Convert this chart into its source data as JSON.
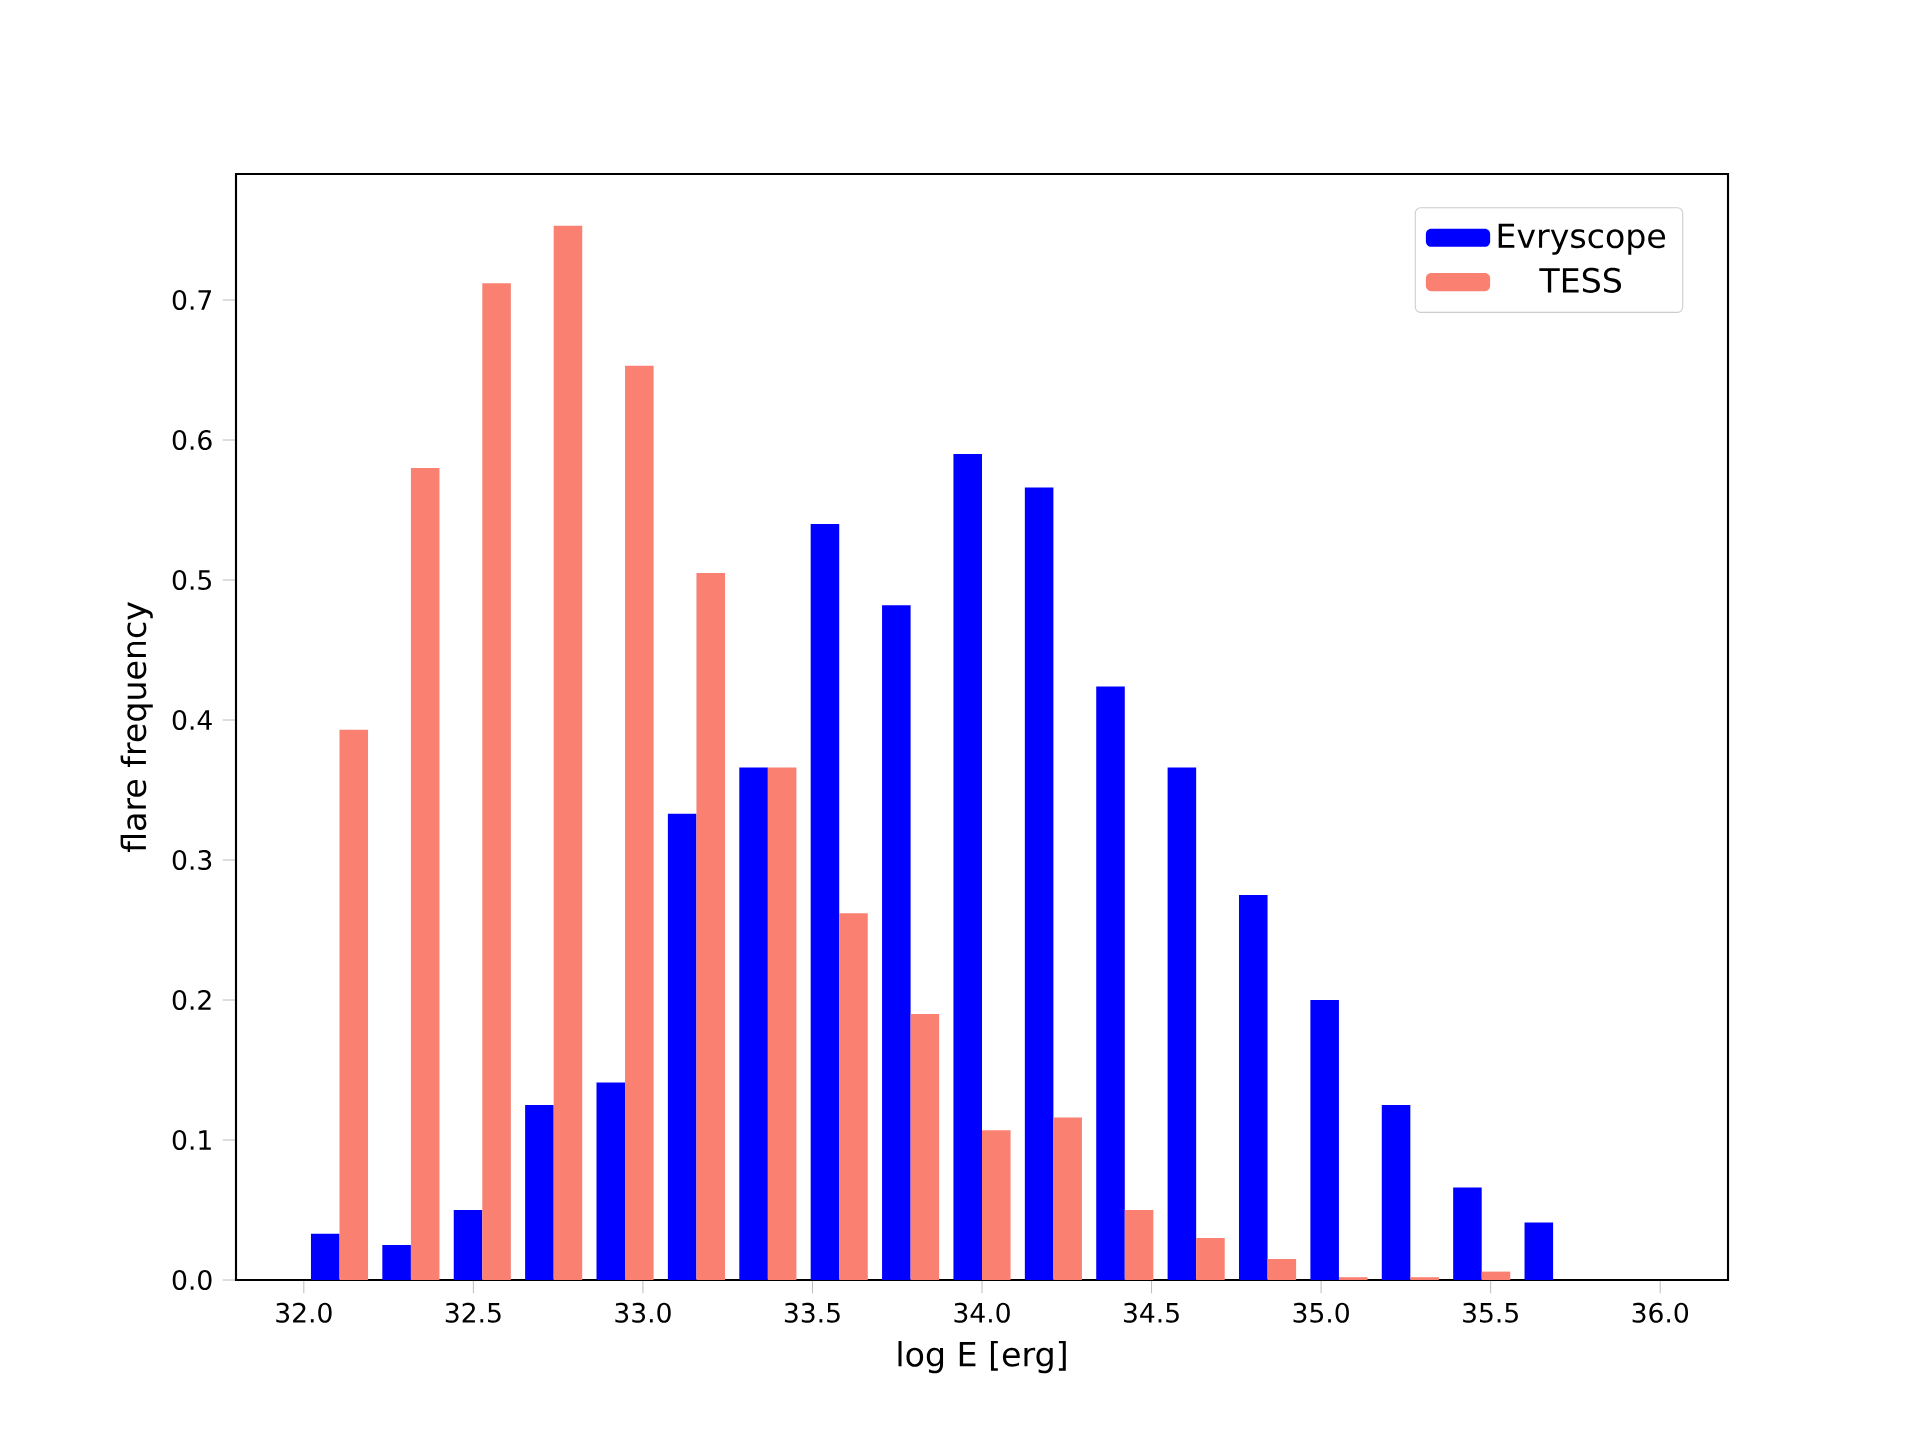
{
  "chart_data": {
    "type": "histogram",
    "xlabel": "log E [erg]",
    "ylabel": "flare frequency",
    "bins": [
      32.0,
      32.2105,
      32.4211,
      32.6316,
      32.8421,
      33.0526,
      33.2632,
      33.4737,
      33.6842,
      33.8947,
      34.1053,
      34.3158,
      34.5263,
      34.7368,
      34.9474,
      35.1579,
      35.3684,
      35.5789,
      35.7895,
      36.0
    ],
    "series": [
      {
        "name": "Evryscope",
        "color": "#0000ff",
        "values": [
          0.033,
          0.025,
          0.05,
          0.125,
          0.141,
          0.333,
          0.366,
          0.54,
          0.482,
          0.59,
          0.566,
          0.424,
          0.366,
          0.275,
          0.2,
          0.125,
          0.066,
          0.041,
          0
        ]
      },
      {
        "name": "TESS",
        "color": "#fa8072",
        "values": [
          0.393,
          0.58,
          0.712,
          0.753,
          0.653,
          0.505,
          0.366,
          0.262,
          0.19,
          0.107,
          0.116,
          0.05,
          0.03,
          0.015,
          0.002,
          0.002,
          0.006,
          0,
          0
        ]
      }
    ],
    "xlim": [
      31.8,
      36.2
    ],
    "ylim": [
      0,
      0.79
    ],
    "xticks": [
      {
        "value": 32,
        "label": "32.0"
      },
      32.5,
      {
        "value": 33,
        "label": "33.0"
      },
      33.5,
      {
        "value": 34,
        "label": "34.0"
      },
      34.5,
      {
        "value": 35,
        "label": "35.0"
      },
      35.5,
      {
        "value": 36,
        "label": "36.0"
      }
    ],
    "yticks": [
      {
        "value": 0,
        "label": "0.0"
      },
      0.1,
      0.2,
      0.3,
      0.4,
      0.5,
      0.6,
      0.7
    ],
    "legend": "top right",
    "grid": false
  }
}
